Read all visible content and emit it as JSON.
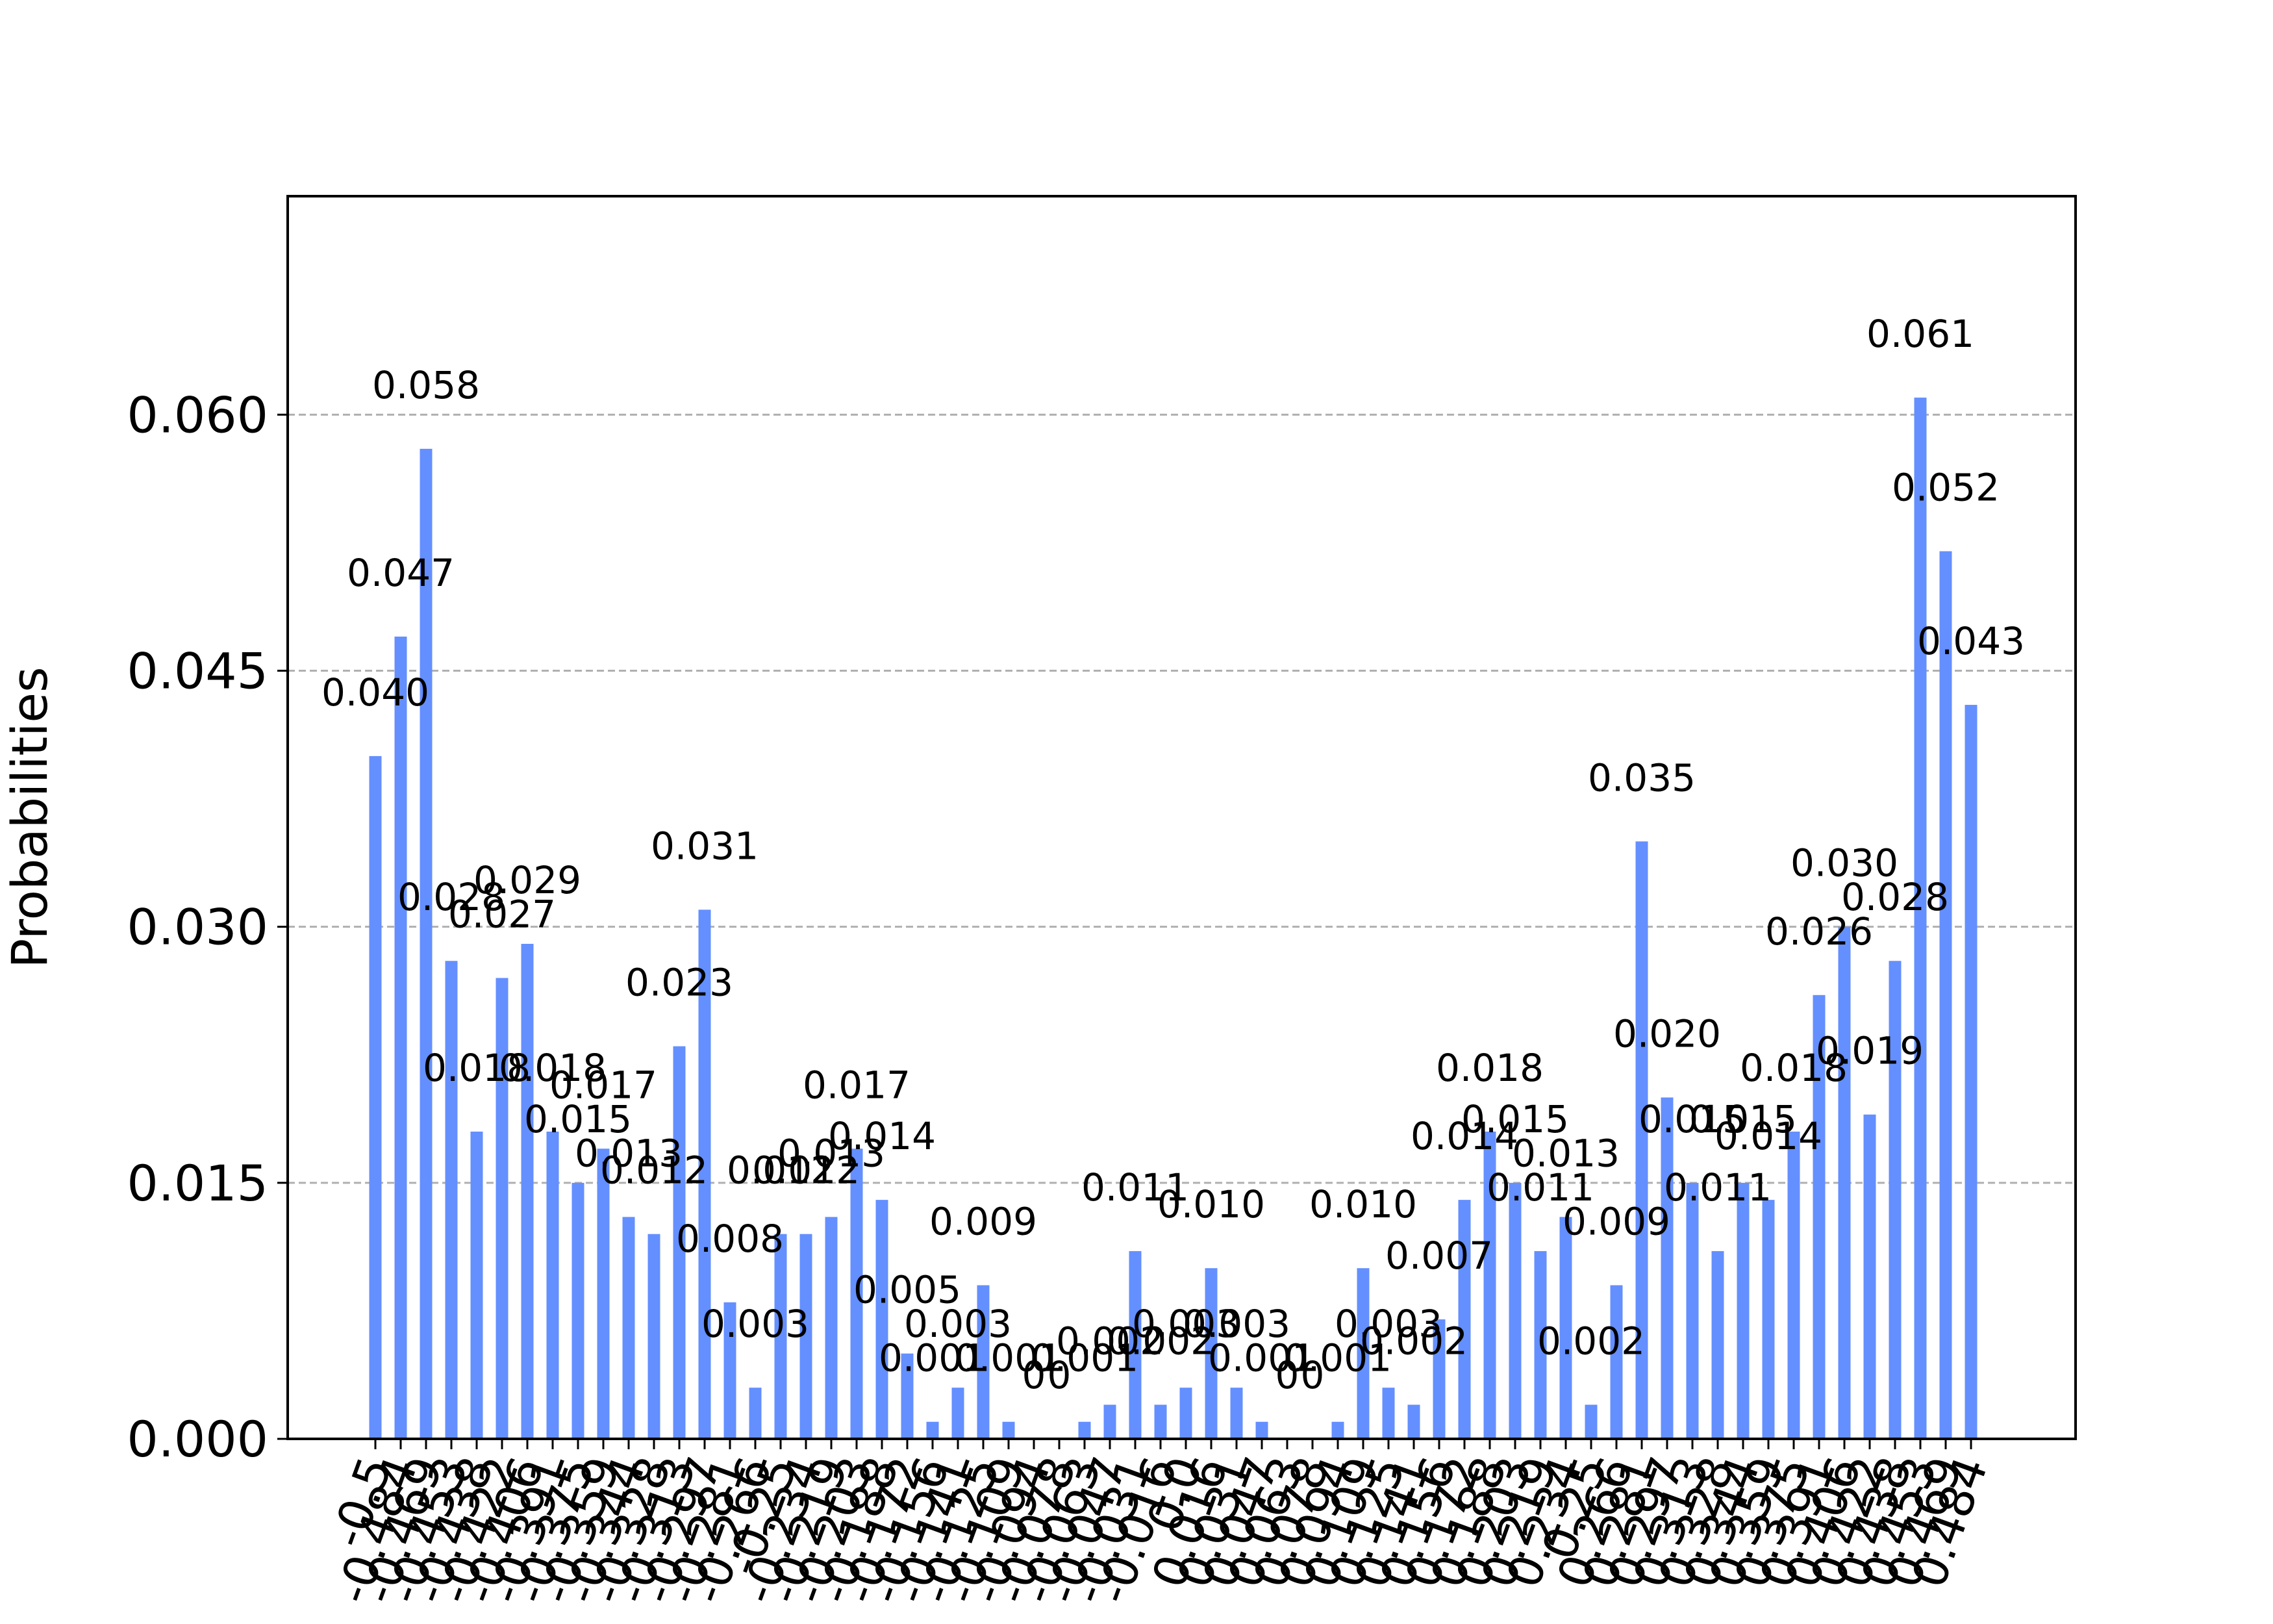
{
  "chart_data": {
    "type": "bar",
    "title": "",
    "xlabel": "",
    "ylabel": "Probabilities",
    "ylim": [
      0,
      0.0728
    ],
    "yticks": [
      0.0,
      0.015,
      0.03,
      0.045,
      0.06
    ],
    "ytick_labels": [
      "0.000",
      "0.015",
      "0.030",
      "0.045",
      "0.060"
    ],
    "grid": "y-dashed",
    "bar_color": "#648fff",
    "grid_color": "#b0b0b0",
    "categories": [
      "-0.5",
      "-0.484",
      "-0.469",
      "-0.453",
      "-0.438",
      "-0.422",
      "-0.406",
      "-0.391",
      "-0.375",
      "-0.359",
      "-0.344",
      "-0.328",
      "-0.313",
      "-0.297",
      "-0.281",
      "-0.266",
      "-0.25",
      "-0.234",
      "-0.219",
      "-0.203",
      "-0.188",
      "-0.172",
      "-0.156",
      "-0.141",
      "-0.125",
      "-0.109",
      "-0.094",
      "-0.078",
      "-0.063",
      "-0.047",
      "-0.031",
      "-0.016",
      "0.0",
      "0.016",
      "0.031",
      "0.047",
      "0.063",
      "0.078",
      "0.094",
      "0.109",
      "0.125",
      "0.141",
      "0.156",
      "0.172",
      "0.188",
      "0.203",
      "0.219",
      "0.234",
      "0.25",
      "0.266",
      "0.281",
      "0.297",
      "0.313",
      "0.328",
      "0.344",
      "0.359",
      "0.375",
      "0.391",
      "0.406",
      "0.422",
      "0.438",
      "0.453",
      "0.469",
      "0.484"
    ],
    "values": [
      0.04,
      0.047,
      0.058,
      0.028,
      0.018,
      0.027,
      0.029,
      0.018,
      0.015,
      0.017,
      0.013,
      0.012,
      0.023,
      0.031,
      0.008,
      0.003,
      0.012,
      0.012,
      0.013,
      0.017,
      0.014,
      0.005,
      0.001,
      0.003,
      0.009,
      0.001,
      0.0,
      0.0,
      0.001,
      0.002,
      0.011,
      0.002,
      0.003,
      0.01,
      0.003,
      0.001,
      0.0,
      0.0,
      0.001,
      0.01,
      0.003,
      0.002,
      0.007,
      0.014,
      0.018,
      0.015,
      0.011,
      0.013,
      0.002,
      0.009,
      0.035,
      0.02,
      0.015,
      0.011,
      0.015,
      0.014,
      0.018,
      0.026,
      0.03,
      0.019,
      0.028,
      0.061,
      0.052,
      0.043
    ],
    "data_labels": [
      "0.040",
      "0.047",
      "0.058",
      "0.028",
      "0.018",
      "0.027",
      "0.029",
      "0.018",
      "0.015",
      "0.017",
      "0.013",
      "0.012",
      "0.023",
      "0.031",
      "0.008",
      "0.003",
      "0.012",
      "0.012",
      "0.013",
      "0.017",
      "0.014",
      "0.005",
      "0.001",
      "0.003",
      "0.009",
      "0.001",
      "0",
      "0",
      "0.001",
      "0.002",
      "0.011",
      "0.002",
      "0.003",
      "0.010",
      "0.003",
      "0.001",
      "0",
      "0",
      "0.001",
      "0.010",
      "0.003",
      "0.002",
      "0.007",
      "0.014",
      "0.018",
      "0.015",
      "0.011",
      "0.013",
      "0.002",
      "0.009",
      "0.035",
      "0.020",
      "0.015",
      "0.011",
      "0.015",
      "0.014",
      "0.018",
      "0.026",
      "0.030",
      "0.019",
      "0.028",
      "0.061",
      "0.052",
      "0.043"
    ]
  }
}
